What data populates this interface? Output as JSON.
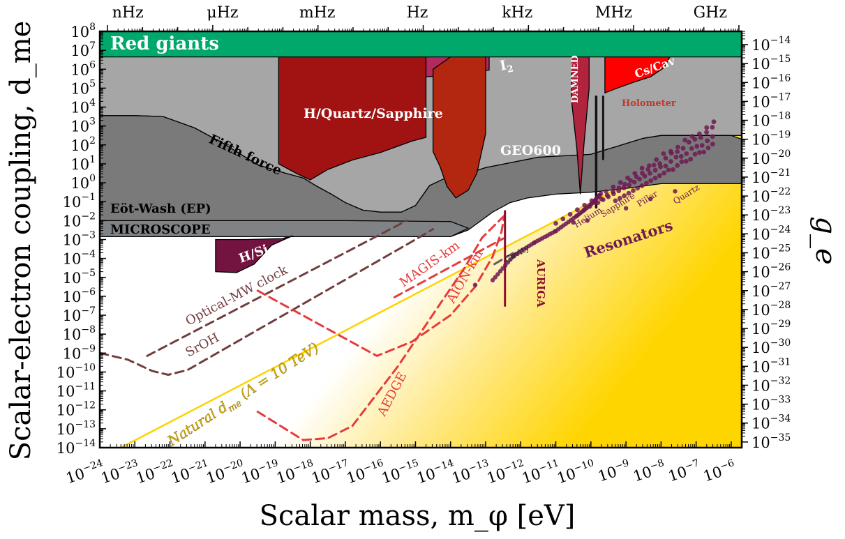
{
  "chart_data": {
    "type": "area",
    "title": "",
    "xlabel": "Scalar mass, m_φ [eV]",
    "ylabel": "Scalar-electron coupling, d_me",
    "y2label": "g_e",
    "xscale": "log",
    "yscale": "log",
    "xlim_log10": [
      -24,
      -5.7
    ],
    "ylim_log10": [
      -14,
      8
    ],
    "x_ticks_log10": [
      -24,
      -23,
      -22,
      -21,
      -20,
      -19,
      -18,
      -17,
      -16,
      -15,
      -14,
      -13,
      -12,
      -11,
      -10,
      -9,
      -8,
      -7,
      -6
    ],
    "y_ticks_log10": [
      -14,
      -13,
      -12,
      -11,
      -10,
      -9,
      -8,
      -7,
      -6,
      -5,
      -4,
      -3,
      -2,
      -1,
      0,
      1,
      2,
      3,
      4,
      5,
      6,
      7,
      8
    ],
    "y2_ticks_exp": [
      -35,
      -34,
      -33,
      -32,
      -31,
      -30,
      -29,
      -28,
      -27,
      -26,
      -25,
      -24,
      -23,
      -22,
      -21,
      -20,
      -19,
      -18,
      -17,
      -16,
      -15,
      -14
    ],
    "y2_offset_log10": -21.3,
    "top_axis": {
      "labels": [
        {
          "text": "nHz",
          "x_log10": -23.2
        },
        {
          "text": "μHz",
          "x_log10": -20.5
        },
        {
          "text": "mHz",
          "x_log10": -17.8
        },
        {
          "text": "Hz",
          "x_log10": -14.95
        },
        {
          "text": "kHz",
          "x_log10": -12.1
        },
        {
          "text": "MHz",
          "x_log10": -9.35
        },
        {
          "text": "GHz",
          "x_log10": -6.6
        }
      ]
    },
    "regions": [
      {
        "name": "Red giants",
        "color": "#00a86b",
        "label_color": "#ffffff",
        "points": [
          [
            -24,
            6.65
          ],
          [
            -5.7,
            6.65
          ],
          [
            -5.7,
            8
          ],
          [
            -24,
            8
          ]
        ]
      },
      {
        "name": "Fifth force",
        "color": "#a6a6a6",
        "label_color": "#000000",
        "points": [
          [
            -24,
            3.55
          ],
          [
            -23,
            3.55
          ],
          [
            -22.2,
            3.5
          ],
          [
            -21.3,
            2.9
          ],
          [
            -20.5,
            2.1
          ],
          [
            -19.5,
            0.95
          ],
          [
            -18.7,
            0.5
          ],
          [
            -18.2,
            0.25
          ],
          [
            -17.8,
            -0.2
          ],
          [
            -17.4,
            -0.6
          ],
          [
            -17,
            -1.05
          ],
          [
            -16.5,
            -1.45
          ],
          [
            -16,
            -1.55
          ],
          [
            -15.4,
            -1.55
          ],
          [
            -15,
            -1.2
          ],
          [
            -14.6,
            -0.15
          ],
          [
            -14.2,
            0.2
          ],
          [
            -13.8,
            0.3
          ],
          [
            -13,
            0.8
          ],
          [
            -11.5,
            1.35
          ],
          [
            -10,
            1.5
          ],
          [
            -8.5,
            2.35
          ],
          [
            -8,
            2.5
          ],
          [
            -5.7,
            2.5
          ],
          [
            -5.7,
            6.65
          ],
          [
            -24,
            6.65
          ]
        ]
      },
      {
        "name": "Eöt-Wash (EP)",
        "color": "#7a7a7a",
        "label_color": "#000000",
        "points": [
          [
            -24,
            3.55
          ],
          [
            -23,
            3.55
          ],
          [
            -22.2,
            3.5
          ],
          [
            -21.3,
            2.9
          ],
          [
            -20.5,
            2.1
          ],
          [
            -19.5,
            0.95
          ],
          [
            -18.7,
            0.5
          ],
          [
            -18.2,
            0.25
          ],
          [
            -17.8,
            -0.2
          ],
          [
            -17.4,
            -0.6
          ],
          [
            -17,
            -1.05
          ],
          [
            -16.5,
            -1.45
          ],
          [
            -16,
            -1.55
          ],
          [
            -15.4,
            -1.55
          ],
          [
            -15,
            -1.2
          ],
          [
            -14.6,
            -0.15
          ],
          [
            -14.2,
            0.2
          ],
          [
            -13.8,
            0.3
          ],
          [
            -13,
            0.8
          ],
          [
            -11.5,
            1.35
          ],
          [
            -10,
            1.5
          ],
          [
            -8.5,
            2.35
          ],
          [
            -8,
            2.5
          ],
          [
            -6,
            2.5
          ],
          [
            -5.7,
            2.3
          ],
          [
            -5.7,
            -0.05
          ],
          [
            -8,
            -0.05
          ],
          [
            -9,
            -0.3
          ],
          [
            -10,
            -0.5
          ],
          [
            -11,
            -0.6
          ],
          [
            -11.8,
            -0.8
          ],
          [
            -12.3,
            -1.05
          ],
          [
            -12.8,
            -1.55
          ],
          [
            -13.5,
            -2.5
          ],
          [
            -14,
            -2.85
          ],
          [
            -24,
            -2.85
          ]
        ]
      },
      {
        "name": "MICROSCOPE",
        "color": "#808386",
        "label_color": "#000000",
        "points": [
          [
            -24,
            -2
          ],
          [
            -17,
            -2
          ],
          [
            -14,
            -2.05
          ],
          [
            -13.5,
            -2.4
          ],
          [
            -14,
            -2.85
          ],
          [
            -24,
            -2.85
          ]
        ]
      },
      {
        "name": "H/Quartz/Sapphire",
        "color": "#a11313",
        "label_color": "#ffffff",
        "points": [
          [
            -18.9,
            6.65
          ],
          [
            -14.7,
            6.65
          ],
          [
            -14.7,
            2.4
          ],
          [
            -15.1,
            2.2
          ],
          [
            -16.0,
            1.6
          ],
          [
            -16.8,
            1.2
          ],
          [
            -17.5,
            0.7
          ],
          [
            -18.0,
            0.15
          ],
          [
            -18.4,
            0.5
          ],
          [
            -18.9,
            1.0
          ]
        ]
      },
      {
        "name": "I2",
        "color": "#b52a5e",
        "label_color": "#ffffff",
        "points": [
          [
            -14.7,
            6.65
          ],
          [
            -12.9,
            6.65
          ],
          [
            -12.9,
            5.95
          ],
          [
            -13.8,
            5.7
          ],
          [
            -14.7,
            5.6
          ]
        ]
      },
      {
        "name": "GEO600",
        "color": "#b3260f",
        "label_color": "#ffffff",
        "points": [
          [
            -14.5,
            6.0
          ],
          [
            -14.0,
            6.65
          ],
          [
            -13.0,
            6.65
          ],
          [
            -13.0,
            2.6
          ],
          [
            -13.25,
            0.5
          ],
          [
            -13.5,
            -0.4
          ],
          [
            -13.85,
            -0.8
          ],
          [
            -14.1,
            -0.2
          ],
          [
            -14.3,
            0.85
          ],
          [
            -14.5,
            1.65
          ]
        ]
      },
      {
        "name": "DAMNED",
        "color": "#b0243e",
        "label_color": "#ffffff",
        "points": [
          [
            -10.55,
            6.65
          ],
          [
            -10.05,
            6.65
          ],
          [
            -10.05,
            5.0
          ],
          [
            -10.2,
            2.0
          ],
          [
            -10.3,
            -0.6
          ],
          [
            -10.4,
            1.8
          ],
          [
            -10.55,
            4.3
          ]
        ]
      },
      {
        "name": "Cs/Cav",
        "color": "#ff0000",
        "label_color": "#ffffff",
        "points": [
          [
            -9.6,
            6.65
          ],
          [
            -7.75,
            6.65
          ],
          [
            -7.9,
            6.1
          ],
          [
            -8.3,
            5.6
          ],
          [
            -8.8,
            5.3
          ],
          [
            -9.25,
            5.0
          ],
          [
            -9.6,
            4.75
          ]
        ]
      },
      {
        "name": "H/Si",
        "color": "#73133f",
        "label_color": "#ffffff",
        "points": [
          [
            -20.7,
            -4.7
          ],
          [
            -20.7,
            -3.0
          ],
          [
            -19.8,
            -3.0
          ],
          [
            -18.8,
            -2.95
          ],
          [
            -18.5,
            -2.8
          ],
          [
            -19.1,
            -3.3
          ],
          [
            -19.6,
            -4.3
          ],
          [
            -20.1,
            -4.75
          ]
        ]
      }
    ],
    "natural_region": {
      "name": "Natural d_me (Λ = 10 TeV)",
      "color": "#ffd200",
      "line": [
        [
          -23.4,
          -14
        ],
        [
          -9.7,
          -0.75
        ]
      ]
    },
    "curves": [
      {
        "name": "Optical-MW clock",
        "color": "#723e3e",
        "style": "dashed",
        "points": [
          [
            -22.65,
            -9.15
          ],
          [
            -15.25,
            -2.0
          ]
        ]
      },
      {
        "name": "SrOH",
        "color": "#723e3e",
        "style": "dashed",
        "points": [
          [
            -24,
            -9.0
          ],
          [
            -23.2,
            -9.35
          ],
          [
            -22.5,
            -9.95
          ],
          [
            -22.05,
            -10.15
          ],
          [
            -21.5,
            -9.9
          ],
          [
            -15,
            -3.0
          ],
          [
            -14.5,
            -2.45
          ]
        ]
      },
      {
        "name": "MAGIS-km",
        "color": "#e63b3b",
        "style": "dashed",
        "points": [
          [
            -19.5,
            -5.7
          ],
          [
            -16.1,
            -9.15
          ],
          [
            -15.1,
            -8.4
          ],
          [
            -14.0,
            -7.0
          ],
          [
            -13.3,
            -5.5
          ],
          [
            -12.8,
            -3.9
          ],
          [
            -12.55,
            -2.6
          ],
          [
            -12.45,
            -1.6
          ]
        ]
      },
      {
        "name": "AION-km",
        "color": "#e63b3b",
        "style": "dashed",
        "points": [
          [
            -15.6,
            -6.05
          ],
          [
            -12.5,
            -2.95
          ]
        ]
      },
      {
        "name": "AEDGE",
        "color": "#e63b3b",
        "style": "dashed",
        "points": [
          [
            -19.5,
            -12.1
          ],
          [
            -18.2,
            -13.6
          ],
          [
            -17.5,
            -13.5
          ],
          [
            -16.8,
            -12.85
          ],
          [
            -15.5,
            -9.7
          ],
          [
            -14.3,
            -6.4
          ],
          [
            -13.6,
            -4.5
          ],
          [
            -13.1,
            -2.9
          ],
          [
            -12.5,
            -1.8
          ]
        ]
      },
      {
        "name": "AURIGA",
        "color": "#8b0e2e",
        "style": "solid",
        "points": [
          [
            -12.45,
            -1.5
          ],
          [
            -12.45,
            -6.5
          ]
        ]
      },
      {
        "name": "Holometer",
        "color": "#141414",
        "style": "solid",
        "points": [
          [
            -9.85,
            4.55
          ],
          [
            -9.85,
            -1.3
          ]
        ]
      },
      {
        "name": "Cavity",
        "color": "#5e5e5e",
        "style": "dashed",
        "points": [
          [
            -12.75,
            -4.3
          ],
          [
            -12.2,
            -3.7
          ]
        ]
      }
    ],
    "resonators": {
      "name": "Resonators",
      "color": "#6d1a52",
      "sub_labels": [
        "Helium",
        "Sapphire",
        "Pillar",
        "Quartz",
        "Cavity"
      ],
      "branch_points": [
        [
          -12.8,
          -5.15
        ],
        [
          -12.2,
          -3.85
        ],
        [
          -11.6,
          -3.15
        ],
        [
          -11.0,
          -2.55
        ],
        [
          -10.4,
          -1.75
        ],
        [
          -10.0,
          -1.15
        ],
        [
          -9.7,
          -0.55
        ]
      ]
    },
    "legend": "none",
    "text_labels": {
      "red_giants": "Red giants",
      "fifth_force": "Fifth force",
      "eot_wash": "Eöt-Wash (EP)",
      "microscope": "MICROSCOPE",
      "h_quartz": "H/Quartz/Sapphire",
      "i2": "I",
      "i2_sub": "2",
      "geo600": "GEO600",
      "damned": "DAMNED",
      "cs_cav": "Cs/Cav",
      "holometer": "Holometer",
      "h_si": "H/Si",
      "optical_mw": "Optical-MW clock",
      "sroh": "SrOH",
      "magis": "MAGIS-km",
      "aion": "AION-km",
      "aedge": "AEDGE",
      "auriga": "AURIGA",
      "cavity": "Cavity",
      "helium": "Helium",
      "sapphire": "Sapphire",
      "pillar": "Pillar",
      "quartz": "Quartz",
      "resonators": "Resonators",
      "natural": "Natural d",
      "natural_sub": "me",
      "natural_rest": " (Λ = 10 TeV)"
    }
  }
}
